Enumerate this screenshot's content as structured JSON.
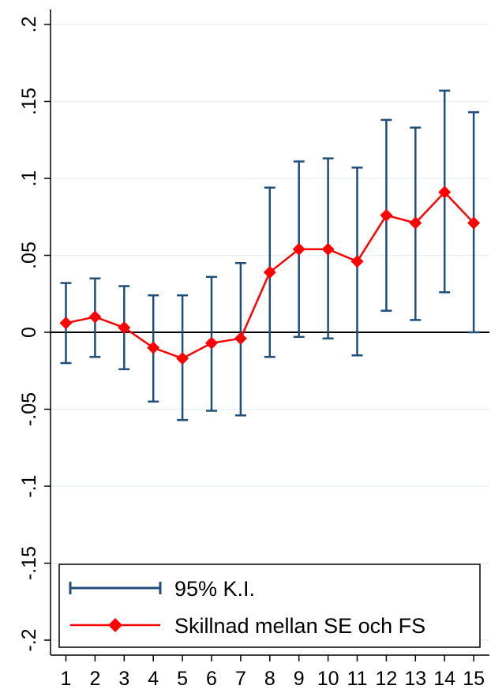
{
  "chart_data": {
    "type": "line",
    "x": [
      1,
      2,
      3,
      4,
      5,
      6,
      7,
      8,
      9,
      10,
      11,
      12,
      13,
      14,
      15
    ],
    "x_tick_labels": [
      "1",
      "2",
      "3",
      "4",
      "5",
      "6",
      "7",
      "8",
      "9",
      "10",
      "11",
      "12",
      "13",
      "14",
      "15"
    ],
    "y_tick_values": [
      -0.2,
      -0.15,
      -0.1,
      -0.05,
      0,
      0.05,
      0.1,
      0.15,
      0.2
    ],
    "y_tick_labels": [
      "-.2",
      "-.15",
      "-.1",
      "-.05",
      "0",
      ".05",
      ".1",
      ".15",
      ".2"
    ],
    "ylim": [
      -0.21,
      0.205
    ],
    "xlim": [
      0.5,
      15.5
    ],
    "reference_line_y": 0,
    "grid": true,
    "legend_position": "bottom-inside",
    "series": [
      {
        "name": "Skillnad mellan SE och FS",
        "kind": "line-with-diamond-markers",
        "color": "#ff0000",
        "values": [
          0.006,
          0.01,
          0.003,
          -0.01,
          -0.017,
          -0.007,
          -0.004,
          0.039,
          0.054,
          0.054,
          0.046,
          0.076,
          0.071,
          0.091,
          0.071
        ]
      },
      {
        "name": "95% K.I.",
        "kind": "error-bars",
        "color": "#1f4e79",
        "lower": [
          -0.02,
          -0.016,
          -0.024,
          -0.045,
          -0.057,
          -0.051,
          -0.054,
          -0.016,
          -0.003,
          -0.004,
          -0.015,
          0.014,
          0.008,
          0.026,
          0.0
        ],
        "upper": [
          0.032,
          0.035,
          0.03,
          0.024,
          0.024,
          0.036,
          0.045,
          0.094,
          0.111,
          0.113,
          0.107,
          0.138,
          0.133,
          0.157,
          0.143
        ]
      }
    ]
  },
  "legend": {
    "ci_label": "95% K.I.",
    "diff_label": "Skillnad mellan SE och FS"
  },
  "colors": {
    "ci": "#1f4e79",
    "series": "#ff0000",
    "grid": "#e8eff5",
    "axis": "#000000"
  }
}
